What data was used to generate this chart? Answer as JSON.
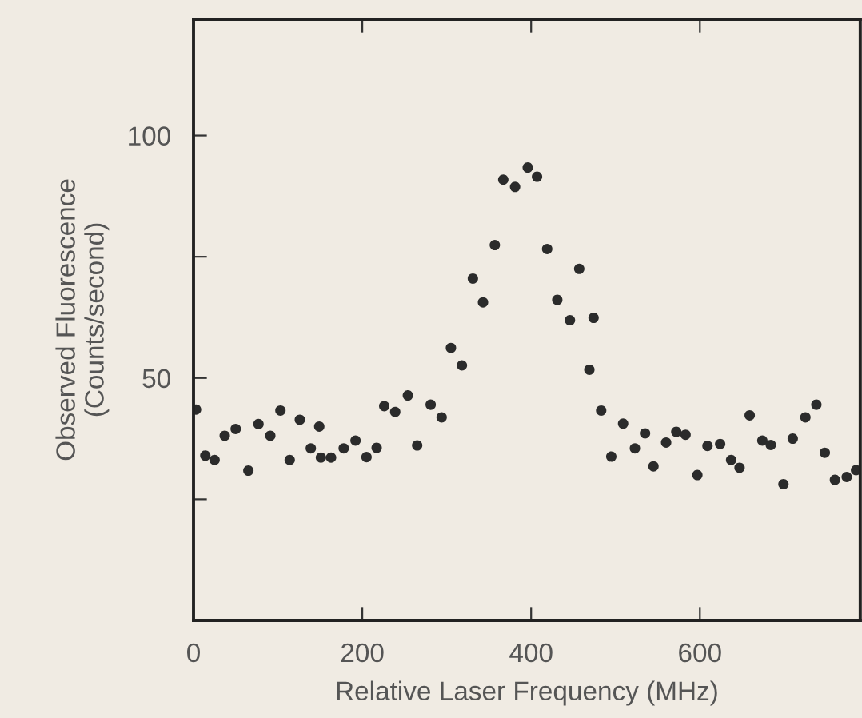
{
  "chart_data": {
    "type": "scatter",
    "xlabel": "Relative Laser Frequency (MHz)",
    "ylabel": "Observed Fluorescence\n(Counts/second)",
    "x": [
      3,
      14,
      25,
      37,
      50,
      65,
      77,
      91,
      103,
      114,
      126,
      139,
      149,
      151,
      163,
      178,
      192,
      205,
      217,
      226,
      239,
      254,
      265,
      281,
      294,
      305,
      318,
      331,
      343,
      357,
      367,
      381,
      396,
      407,
      419,
      431,
      446,
      457,
      469,
      474,
      483,
      495,
      509,
      523,
      535,
      545,
      560,
      572,
      583,
      597,
      609,
      624,
      637,
      647,
      659,
      674,
      684,
      699,
      710,
      725,
      738,
      748,
      760,
      774,
      785
    ],
    "series": [
      {
        "color": "#2b2b2b",
        "values": [
          43.5,
          34.0,
          33.1,
          38.1,
          39.5,
          30.9,
          40.5,
          38.1,
          43.3,
          33.1,
          41.4,
          35.5,
          40.0,
          33.6,
          33.6,
          35.5,
          37.1,
          33.7,
          35.6,
          44.2,
          43.0,
          46.4,
          36.1,
          44.5,
          41.9,
          56.2,
          52.6,
          70.5,
          65.6,
          77.4,
          90.9,
          89.4,
          93.4,
          91.5,
          76.6,
          66.1,
          61.9,
          72.5,
          51.7,
          62.4,
          43.3,
          33.8,
          40.6,
          35.5,
          38.6,
          31.8,
          36.7,
          38.9,
          38.3,
          30.0,
          36.0,
          36.4,
          33.1,
          31.5,
          42.3,
          37.1,
          36.2,
          28.1,
          37.5,
          41.9,
          44.5,
          34.6,
          29.0,
          29.6,
          31.0
        ]
      }
    ],
    "xlim": [
      0,
      790
    ],
    "ylim": [
      0,
      124
    ],
    "xticks": [
      0,
      200,
      400,
      600
    ],
    "yticks": [
      {
        "value": 25,
        "label": null
      },
      50,
      {
        "value": 75,
        "label": null
      },
      100
    ],
    "marker": "circle",
    "grid": false,
    "legend": false
  }
}
